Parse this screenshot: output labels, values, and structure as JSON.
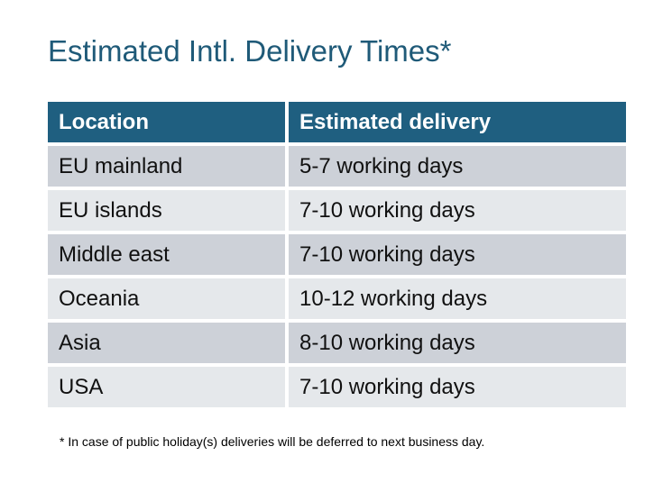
{
  "title": "Estimated Intl. Delivery Times*",
  "table": {
    "headers": [
      "Location",
      "Estimated delivery"
    ],
    "rows": [
      [
        "EU mainland",
        "5-7 working days"
      ],
      [
        "EU islands",
        "7-10 working days"
      ],
      [
        "Middle east",
        "7-10 working days"
      ],
      [
        "Oceania",
        "10-12 working days"
      ],
      [
        "Asia",
        "8-10 working days"
      ],
      [
        "USA",
        "7-10 working days"
      ]
    ]
  },
  "footnote": "* In case of public holiday(s) deliveries will be deferred to next business day.",
  "colors": {
    "header": "#1f5f80",
    "row_odd": "#cdd1d8",
    "row_even": "#e5e8eb",
    "title": "#1f5a78"
  }
}
